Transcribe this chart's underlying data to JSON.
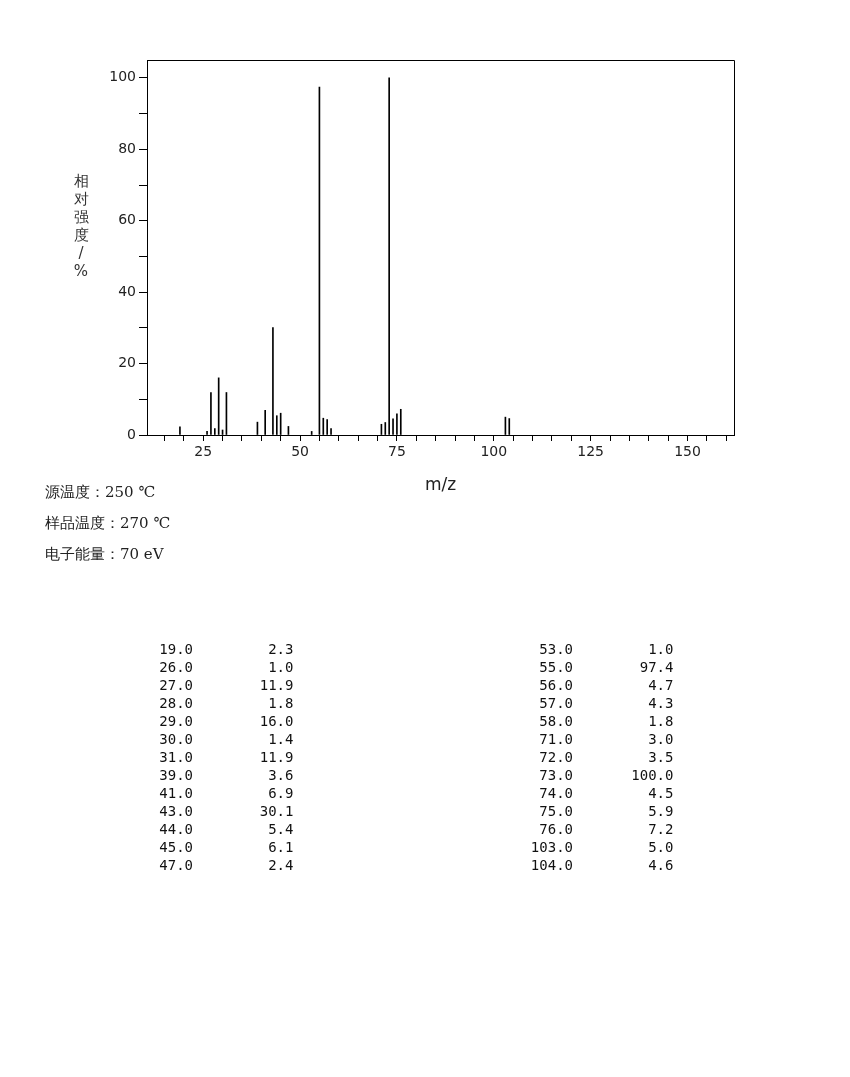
{
  "chart_data": {
    "type": "bar",
    "xlabel": "m/z",
    "ylabel": "相对强度/%",
    "x": [
      19.0,
      26.0,
      27.0,
      28.0,
      29.0,
      30.0,
      31.0,
      39.0,
      41.0,
      43.0,
      44.0,
      45.0,
      47.0,
      53.0,
      55.0,
      56.0,
      57.0,
      58.0,
      71.0,
      72.0,
      73.0,
      74.0,
      75.0,
      76.0,
      103.0,
      104.0
    ],
    "values": [
      2.3,
      1.0,
      11.9,
      1.8,
      16.0,
      1.4,
      11.9,
      3.6,
      6.9,
      30.1,
      5.4,
      6.1,
      2.4,
      1.0,
      97.4,
      4.7,
      4.3,
      1.8,
      3.0,
      3.5,
      100.0,
      4.5,
      5.9,
      7.2,
      5.0,
      4.6
    ],
    "color": "#000000",
    "legend": false,
    "xlim": [
      10.5,
      162
    ],
    "xticks": [
      {
        "value": 15,
        "label": null
      },
      {
        "value": 20,
        "label": null
      },
      25,
      {
        "value": 30,
        "label": null
      },
      {
        "value": 35,
        "label": null
      },
      {
        "value": 40,
        "label": null
      },
      {
        "value": 45,
        "label": null
      },
      50,
      {
        "value": 55,
        "label": null
      },
      {
        "value": 60,
        "label": null
      },
      {
        "value": 65,
        "label": null
      },
      {
        "value": 70,
        "label": null
      },
      75,
      {
        "value": 80,
        "label": null
      },
      {
        "value": 85,
        "label": null
      },
      {
        "value": 90,
        "label": null
      },
      {
        "value": 95,
        "label": null
      },
      100,
      {
        "value": 105,
        "label": null
      },
      {
        "value": 110,
        "label": null
      },
      {
        "value": 115,
        "label": null
      },
      {
        "value": 120,
        "label": null
      },
      125,
      {
        "value": 130,
        "label": null
      },
      {
        "value": 135,
        "label": null
      },
      {
        "value": 140,
        "label": null
      },
      {
        "value": 145,
        "label": null
      },
      150,
      {
        "value": 155,
        "label": null
      },
      {
        "value": 160,
        "label": null
      }
    ],
    "ylim": [
      0,
      105
    ],
    "yticks": [
      0,
      {
        "value": 10,
        "label": null
      },
      20,
      {
        "value": 30,
        "label": null
      },
      40,
      {
        "value": 50,
        "label": null
      },
      60,
      {
        "value": 70,
        "label": null
      },
      80,
      {
        "value": 90,
        "label": null
      },
      100
    ],
    "annotations": [
      "源温度：250 ℃",
      "样品温度：270 ℃",
      "电子能量：70 eV",
      "19.0 2.3",
      "26.0 1.0",
      "27.0 11.9",
      "28.0 1.8",
      "29.0 16.0",
      "30.0 1.4",
      "31.0 11.9",
      "39.0 3.6",
      "41.0 6.9",
      "43.0 30.1",
      "44.0 5.4",
      "45.0 6.1",
      "47.0 2.4",
      "53.0 1.0",
      "55.0 97.4",
      "56.0 4.7",
      "57.0 4.3",
      "58.0 1.8",
      "71.0 3.0",
      "72.0 3.5",
      "73.0 100.0",
      "74.0 4.5",
      "75.0 5.9",
      "76.0 7.2",
      "103.0 5.0",
      "104.0 4.6"
    ]
  }
}
